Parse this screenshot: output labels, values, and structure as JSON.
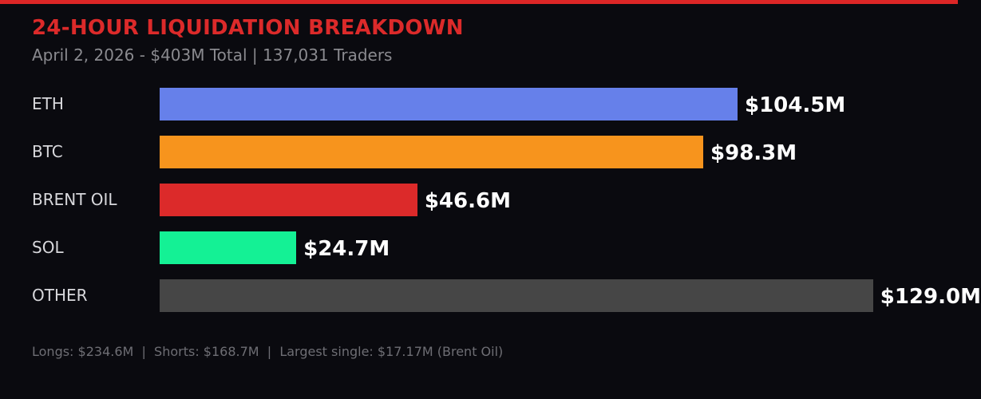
{
  "chart_data": {
    "type": "bar",
    "orientation": "horizontal",
    "title": "24-HOUR LIQUIDATION BREAKDOWN",
    "subtitle": "April 2, 2026 - $403M Total | 137,031 Traders",
    "categories": [
      "ETH",
      "BTC",
      "BRENT OIL",
      "SOL",
      "OTHER"
    ],
    "values": [
      104.5,
      98.3,
      46.6,
      24.7,
      129.0
    ],
    "labels": [
      "$104.5M",
      "$98.3M",
      "$46.6M",
      "$24.7M",
      "$129.0M"
    ],
    "colors": [
      "#6680ea",
      "#f7941d",
      "#dc2a2a",
      "#14f195",
      "#464646"
    ],
    "unit": "$M",
    "grid": false,
    "footer": "Longs: $234.6M  |  Shorts: $168.7M  |  Largest single: $17.17M (Brent Oil)"
  }
}
